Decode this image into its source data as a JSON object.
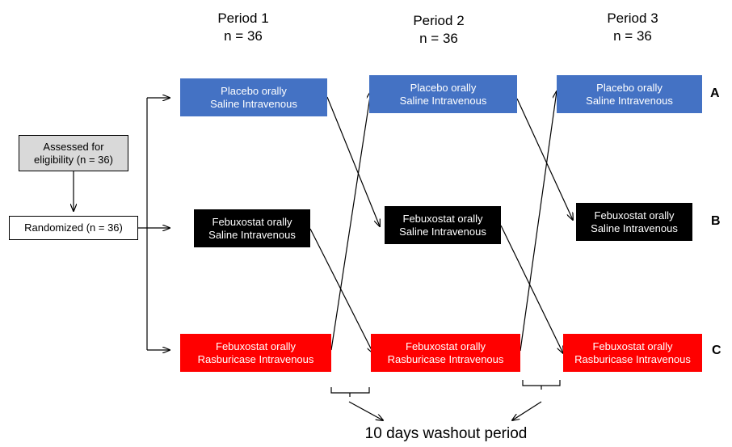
{
  "periods": [
    {
      "title": "Period 1",
      "n": "n = 36"
    },
    {
      "title": "Period 2",
      "n": "n = 36"
    },
    {
      "title": "Period 3",
      "n": "n = 36"
    }
  ],
  "screening": {
    "assessed": [
      "Assessed for",
      "eligibility (n = 36)"
    ],
    "randomized": "Randomized (n = 36)"
  },
  "treatments": {
    "placebo": [
      "Placebo orally",
      "Saline Intravenous"
    ],
    "febuxostat": [
      "Febuxostat orally",
      "Saline Intravenous"
    ],
    "combo": [
      "Febuxostat orally",
      "Rasburicase Intravenous"
    ]
  },
  "row_labels": [
    "A",
    "B",
    "C"
  ],
  "washout_label": "10 days washout period",
  "colors": {
    "placebo": "#4472c4",
    "febuxostat": "#000000",
    "combo": "#ff0000",
    "assessed": "#d9d9d9"
  }
}
